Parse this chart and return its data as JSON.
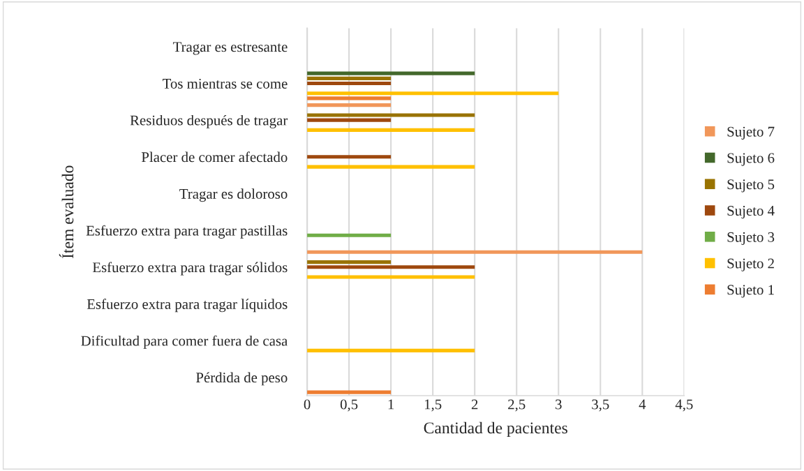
{
  "chart_data": {
    "type": "bar",
    "orientation": "horizontal",
    "xlabel": "Cantidad de pacientes",
    "ylabel": "Ítem evaluado",
    "categories": [
      "Tragar es estresante",
      "Tos mientras se come",
      "Residuos después de tragar",
      "Placer de comer afectado",
      "Tragar es doloroso",
      "Esfuerzo extra para tragar pastillas",
      "Esfuerzo extra para tragar sólidos",
      "Esfuerzo extra para tragar líquidos",
      "Dificultad para comer fuera de casa",
      "Pérdida de peso"
    ],
    "series": [
      {
        "name": "Sujeto 1",
        "color": "#ed7d31",
        "values": [
          0,
          1,
          0,
          0,
          0,
          0,
          0,
          0,
          0,
          1
        ]
      },
      {
        "name": "Sujeto 2",
        "color": "#ffc000",
        "values": [
          0,
          3,
          2,
          2,
          0,
          0,
          2,
          0,
          2,
          0
        ]
      },
      {
        "name": "Sujeto 3",
        "color": "#70ad47",
        "values": [
          0,
          0,
          0,
          0,
          0,
          1,
          0,
          0,
          0,
          0
        ]
      },
      {
        "name": "Sujeto 4",
        "color": "#9e480e",
        "values": [
          0,
          1,
          1,
          1,
          0,
          0,
          2,
          0,
          0,
          0
        ]
      },
      {
        "name": "Sujeto 5",
        "color": "#997300",
        "values": [
          0,
          1,
          2,
          0,
          0,
          0,
          1,
          0,
          0,
          0
        ]
      },
      {
        "name": "Sujeto 6",
        "color": "#43682b",
        "values": [
          0,
          2,
          0,
          0,
          0,
          0,
          0,
          0,
          0,
          0
        ]
      },
      {
        "name": "Sujeto 7",
        "color": "#f1975a",
        "values": [
          0,
          0,
          1,
          0,
          0,
          0,
          4,
          0,
          0,
          0
        ]
      }
    ],
    "xlim": [
      0,
      4.5
    ],
    "xticks": [
      0,
      {
        "value": 0.5,
        "label": "0,5"
      },
      1,
      {
        "value": 1.5,
        "label": "1,5"
      },
      2,
      {
        "value": 2.5,
        "label": "2,5"
      },
      3,
      {
        "value": 3.5,
        "label": "3,5"
      },
      4,
      {
        "value": 4.5,
        "label": "4,5"
      }
    ],
    "grid": "x",
    "legend": "right"
  }
}
